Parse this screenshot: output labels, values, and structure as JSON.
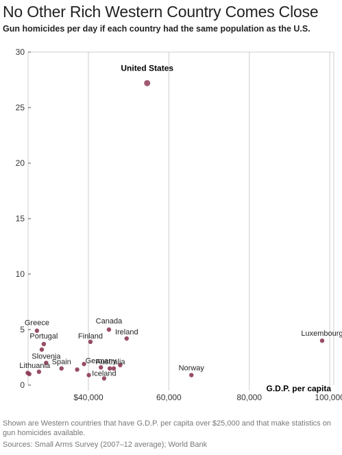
{
  "title": "No Other Rich Western Country Comes Close",
  "subtitle": "Gun homicides per day if each country had the same population as the U.S.",
  "footnote": "Shown are Western countries that have G.D.P. per capita over $25,000 and that make statistics on gun homicides available.",
  "source": "Sources: Small Arms Survey (2007–12 average); World Bank",
  "colors": {
    "point": "#a05a72",
    "point_dark": "#8c3a52",
    "grid": "#cccccc",
    "axis": "#555555"
  },
  "chart_data": {
    "type": "scatter",
    "xlabel": "G.D.P. per capita",
    "ylabel": "",
    "xlim": [
      25000,
      101000
    ],
    "ylim": [
      0,
      30
    ],
    "x_ticks": [
      {
        "value": 40000,
        "label": "$40,000"
      },
      {
        "value": 60000,
        "label": "60,000"
      },
      {
        "value": 80000,
        "label": "80,000"
      },
      {
        "value": 100000,
        "label": "100,000"
      }
    ],
    "y_ticks": [
      {
        "value": 0,
        "label": "0"
      },
      {
        "value": 5,
        "label": "5"
      },
      {
        "value": 10,
        "label": "10"
      },
      {
        "value": 15,
        "label": "15"
      },
      {
        "value": 20,
        "label": "20"
      },
      {
        "value": 25,
        "label": "25"
      },
      {
        "value": 30,
        "label": "30"
      }
    ],
    "grid": true,
    "points": [
      {
        "name": "United States",
        "label": "United States",
        "x": 54600,
        "y": 27.2,
        "highlight": true
      },
      {
        "name": "Greece",
        "label": "Greece",
        "x": 27200,
        "y": 4.9
      },
      {
        "name": "Canada",
        "label": "Canada",
        "x": 45100,
        "y": 5.0
      },
      {
        "name": "Ireland",
        "label": "Ireland",
        "x": 49500,
        "y": 4.2
      },
      {
        "name": "Finland",
        "label": "Finland",
        "x": 40500,
        "y": 3.9
      },
      {
        "name": "Portugal",
        "label": "Portugal",
        "x": 28900,
        "y": 3.7
      },
      {
        "name": "",
        "label": "",
        "x": 28400,
        "y": 3.2
      },
      {
        "name": "Luxembourg",
        "label": "Luxembourg",
        "x": 98100,
        "y": 4.0
      },
      {
        "name": "Slovenia",
        "label": "Slovenia",
        "x": 29500,
        "y": 2.0
      },
      {
        "name": "Spain",
        "label": "Spain",
        "x": 33300,
        "y": 1.5
      },
      {
        "name": "Lithuania",
        "label": "Lithuania",
        "x": 24900,
        "y": 1.1
      },
      {
        "name": "",
        "label": "",
        "x": 25300,
        "y": 1.0
      },
      {
        "name": "",
        "label": "",
        "x": 27700,
        "y": 1.2
      },
      {
        "name": "",
        "label": "",
        "x": 37200,
        "y": 1.4
      },
      {
        "name": "",
        "label": "",
        "x": 38900,
        "y": 1.9
      },
      {
        "name": "Germany",
        "label": "Germany",
        "x": 43100,
        "y": 1.6
      },
      {
        "name": "Australia",
        "label": "Australia",
        "x": 45300,
        "y": 1.5
      },
      {
        "name": "",
        "label": "",
        "x": 46300,
        "y": 1.5
      },
      {
        "name": "",
        "label": "",
        "x": 47900,
        "y": 1.8
      },
      {
        "name": "Iceland",
        "label": "Iceland",
        "x": 43900,
        "y": 0.6
      },
      {
        "name": "",
        "label": "",
        "x": 40100,
        "y": 0.9
      },
      {
        "name": "Norway",
        "label": "Norway",
        "x": 65600,
        "y": 0.9
      }
    ]
  }
}
